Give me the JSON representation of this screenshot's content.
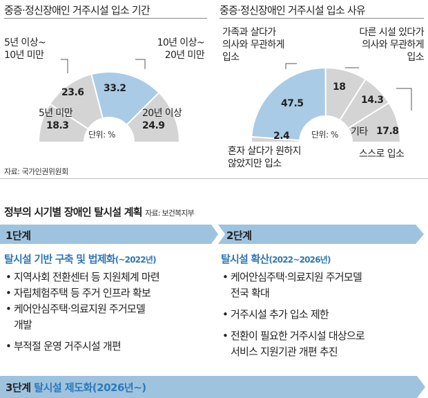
{
  "chart_data": [
    {
      "type": "pie",
      "title": "중증·정신장애인 거주시설 입소 기간",
      "unit_label": "단위: %",
      "categories": [
        "5년 미만",
        "5년 이상~10년 미만",
        "10년 이상~20년 미만",
        "20년 이상"
      ],
      "values": [
        18.3,
        23.6,
        33.2,
        24.9
      ],
      "highlight": "10년 이상~20년 미만",
      "labels": {
        "lt5": "5년 미만",
        "b5to10_l1": "5년 이상~",
        "b5to10_l2": "10년 미만",
        "b10to20_l1": "10년 이상~",
        "b10to20_l2": "20년 미만",
        "ge20": "20년 이상"
      }
    },
    {
      "type": "pie",
      "title": "중증·정신장애인 거주시설 입소 사유",
      "unit_label": "단위: %",
      "categories": [
        "혼자 살다가 원하지 않았지만 입소",
        "가족과 살다가 의사와 무관하게 입소",
        "다른 시설 있다가 의사와 무관하게 입소",
        "스스로 입소",
        "기타"
      ],
      "values": [
        2.4,
        47.5,
        18.0,
        14.3,
        17.8
      ],
      "highlight": "가족과 살다가 의사와 무관하게 입소",
      "labels": {
        "alone_l1": "혼자 살다가 원하지",
        "alone_l2": "않았지만 입소",
        "family_l1": "가족과 살다가",
        "family_l2": "의사와 무관하게",
        "family_l3": "입소",
        "other_fac_l1": "다른 시설 있다가",
        "other_fac_l2": "의사와 무관하게",
        "other_fac_l3": "입소",
        "self": "스스로 입소",
        "etc": "기타"
      }
    }
  ],
  "sources": {
    "charts": "자료: 국가인권위원회"
  },
  "plan": {
    "title": "정부의 시기별 장애인 탈시설 계획",
    "source": "자료: 보건복지부",
    "stage1": {
      "label": "1단계",
      "heading": "탈시설 기반 구축 및 법제화",
      "period": "(~2022년)",
      "items": [
        [
          "지역사회 전환센터 등 지원체계 마련"
        ],
        [
          "자립체험주택 등 주거 인프라 확보"
        ],
        [
          "케어안심주택·의료지원 주거모델",
          "개발"
        ],
        [
          "부적절 운영 거주시설 개편"
        ]
      ]
    },
    "stage2": {
      "label": "2단계",
      "heading": "탈시설 확산",
      "period": "(2022~2026년)",
      "items": [
        [
          "케어안심주택·의료지원 주거모델",
          "전국 확대"
        ],
        [
          "거주시설 추가 입소 제한"
        ],
        [
          "전환이 필요한 거주시설 대상으로",
          "서비스 지원기관 개편 추진"
        ]
      ]
    },
    "stage3": {
      "label": "3단계",
      "heading": "탈시설 제도화(2026년~)"
    }
  },
  "colors": {
    "highlight": "#a9cbe6",
    "slice": "#d4d4d4",
    "stage_bar": "#9ec3df",
    "accent_text": "#2f78b8"
  }
}
